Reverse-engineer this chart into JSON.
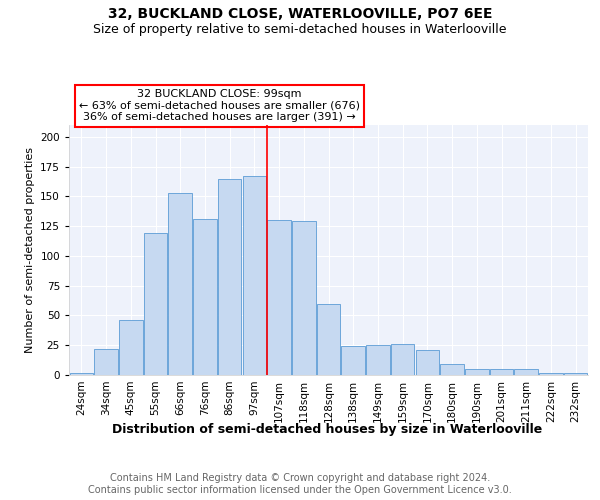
{
  "title1": "32, BUCKLAND CLOSE, WATERLOOVILLE, PO7 6EE",
  "title2": "Size of property relative to semi-detached houses in Waterlooville",
  "xlabel": "Distribution of semi-detached houses by size in Waterlooville",
  "ylabel": "Number of semi-detached properties",
  "categories": [
    "24sqm",
    "34sqm",
    "45sqm",
    "55sqm",
    "66sqm",
    "76sqm",
    "86sqm",
    "97sqm",
    "107sqm",
    "118sqm",
    "128sqm",
    "138sqm",
    "149sqm",
    "159sqm",
    "170sqm",
    "180sqm",
    "190sqm",
    "201sqm",
    "211sqm",
    "222sqm",
    "232sqm"
  ],
  "values": [
    2,
    22,
    46,
    119,
    153,
    131,
    165,
    167,
    130,
    129,
    60,
    24,
    25,
    26,
    21,
    9,
    5,
    5,
    5,
    2,
    2
  ],
  "bar_color": "#c6d9f1",
  "bar_edge_color": "#5b9bd5",
  "vline_index": 7,
  "vline_color": "red",
  "annotation_text": "32 BUCKLAND CLOSE: 99sqm\n← 63% of semi-detached houses are smaller (676)\n36% of semi-detached houses are larger (391) →",
  "annotation_box_color": "white",
  "annotation_box_edge_color": "red",
  "footer": "Contains HM Land Registry data © Crown copyright and database right 2024.\nContains public sector information licensed under the Open Government Licence v3.0.",
  "ylim": [
    0,
    210
  ],
  "background_color": "#eef2fb",
  "title1_fontsize": 10,
  "title2_fontsize": 9,
  "xlabel_fontsize": 9,
  "ylabel_fontsize": 8,
  "footer_fontsize": 7,
  "tick_fontsize": 7.5,
  "annotation_fontsize": 8
}
